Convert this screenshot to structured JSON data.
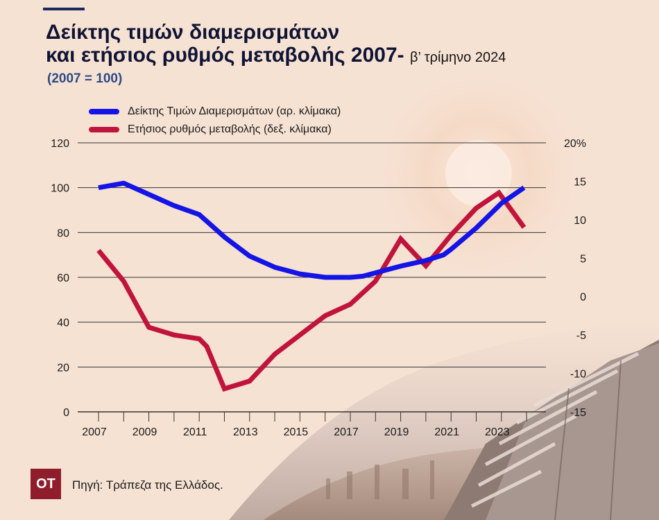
{
  "header": {
    "title_line1": "Δείκτης τιμών διαμερισμάτων",
    "title_line2": "και ετήσιος ρυθμός μεταβολής 2007-",
    "title_period": "β’ τρίμηνο 2024",
    "base_note": "(2007 = 100)"
  },
  "footer": {
    "logo_text": "ΟΤ",
    "source": "Πηγή: Τράπεζα της Ελλάδος."
  },
  "colors": {
    "index": "#1414e6",
    "change": "#c0143c",
    "grid": "#333333",
    "background": "#f6e2d3"
  },
  "chart_data": {
    "type": "line",
    "x": [
      2007,
      2008,
      2009,
      2010,
      2011,
      2012,
      2013,
      2014,
      2015,
      2016,
      2017,
      2018,
      2019,
      2020,
      2021,
      2022,
      2023,
      2024
    ],
    "x_ticks": [
      "2007",
      "2009",
      "2011",
      "2013",
      "2015",
      "2017",
      "2019",
      "2021",
      "2023"
    ],
    "series": [
      {
        "name": "Δείκτης Τιμών Διαμερισμάτων (αρ. κλίμακα)",
        "axis": "left",
        "x": [
          2007,
          2008,
          2009,
          2010,
          2011,
          2011.3,
          2012,
          2013,
          2014,
          2015,
          2016,
          2017,
          2017.5,
          2018,
          2019,
          2020,
          2020.7,
          2021,
          2022,
          2023,
          2023.9
        ],
        "values": [
          100,
          102,
          97,
          92,
          88,
          85,
          78,
          69.5,
          64.5,
          61.5,
          60,
          60,
          60.5,
          62,
          65,
          67.5,
          70,
          72.5,
          82,
          93,
          100
        ]
      },
      {
        "name": "Ετήσιος ρυθμός μεταβολής (δεξ. κλίμακα)",
        "axis": "right",
        "x": [
          2007,
          2008,
          2009,
          2010,
          2011,
          2011.3,
          2012,
          2013,
          2014,
          2015,
          2016,
          2017,
          2018,
          2019,
          2020,
          2021,
          2022,
          2022.9,
          2023.9
        ],
        "values": [
          6,
          2,
          -4,
          -5,
          -5.5,
          -6.5,
          -12,
          -11,
          -7.5,
          -5,
          -2.5,
          -1,
          2,
          7.5,
          4,
          8,
          11.5,
          13.5,
          9
        ]
      }
    ],
    "y_left": {
      "ticks": [
        "120",
        "100",
        "80",
        "60",
        "40",
        "20",
        "0"
      ],
      "lim": [
        0,
        120
      ]
    },
    "y_right": {
      "ticks": [
        "20%",
        "15",
        "10",
        "5",
        "0",
        "-5",
        "-10",
        "-15"
      ],
      "lim": [
        -15,
        20
      ]
    },
    "grid": "horizontal",
    "legend_position": "top-left"
  }
}
